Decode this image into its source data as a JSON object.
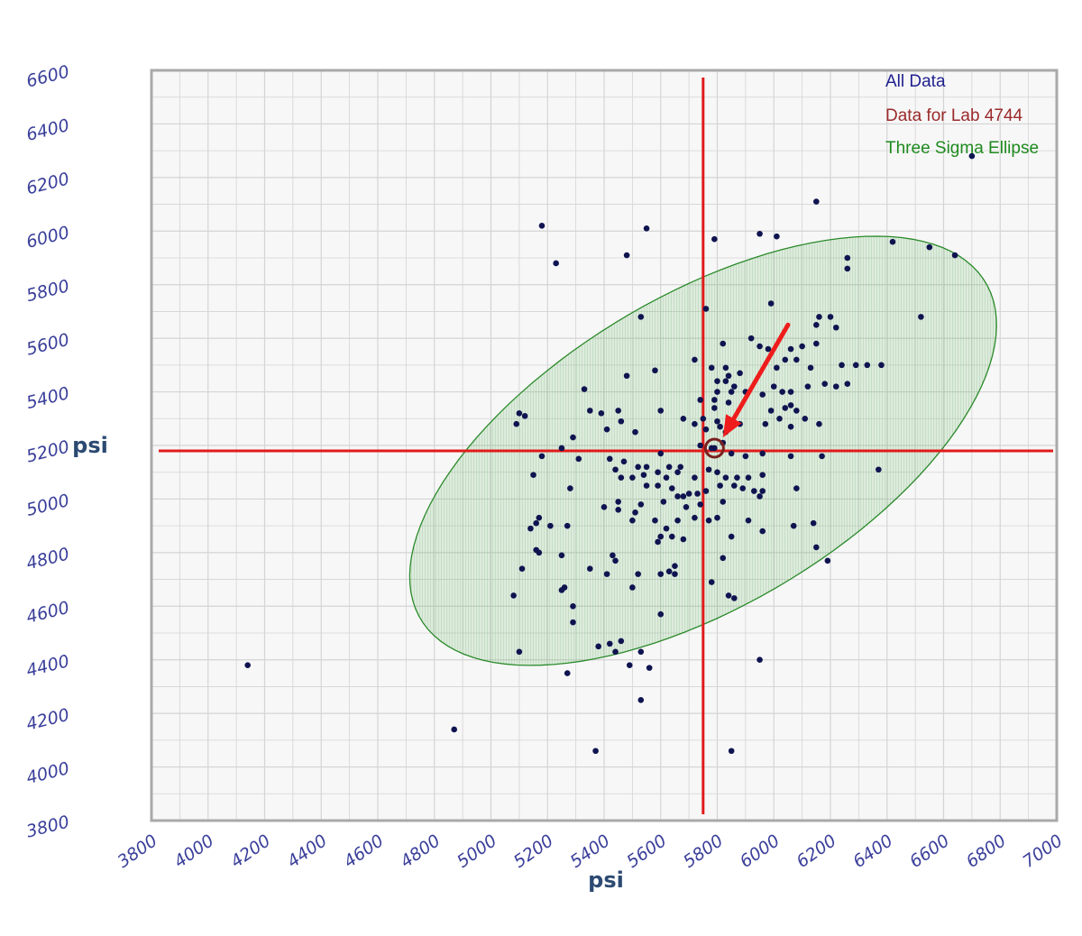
{
  "chart_data": {
    "type": "scatter",
    "title": "",
    "xlabel": "psi",
    "ylabel": "psi",
    "xlim": [
      3800,
      7000
    ],
    "ylim": [
      3800,
      6600
    ],
    "x_ticks": [
      3800,
      4000,
      4200,
      4400,
      4600,
      4800,
      5000,
      5200,
      5400,
      5600,
      5800,
      6000,
      6200,
      6400,
      6600,
      6800,
      7000
    ],
    "y_ticks": [
      3800,
      4000,
      4200,
      4400,
      4600,
      4800,
      5000,
      5200,
      5400,
      5600,
      5800,
      6000,
      6200,
      6400,
      6600
    ],
    "grid": true,
    "legend": {
      "placement": "top-right",
      "entries": [
        {
          "label": "All Data",
          "color": "#1f1f8f"
        },
        {
          "label": "Data for Lab 4744",
          "color": "#9b2a2a"
        },
        {
          "label": "Three Sigma Ellipse",
          "color": "#1e8a1e"
        }
      ]
    },
    "colors": {
      "points": "#0f1450",
      "crosshair": "#e01b1b",
      "ellipse_fill": "#2d8f2d",
      "ellipse_stroke": "#2a8a2a",
      "lab_marker": "#7a1f1f",
      "arrow": "#ef1c1c",
      "grid": "#d4d4d4",
      "plot_bg": "#f7f7f7"
    },
    "series": [
      {
        "name": "All Data",
        "points": [
          [
            4140,
            4380
          ],
          [
            4870,
            4140
          ],
          [
            5180,
            6020
          ],
          [
            5230,
            5880
          ],
          [
            5550,
            6010
          ],
          [
            5790,
            5970
          ],
          [
            5950,
            5990
          ],
          [
            6010,
            5980
          ],
          [
            6150,
            6110
          ],
          [
            6700,
            6280
          ],
          [
            6420,
            5960
          ],
          [
            6550,
            5940
          ],
          [
            6640,
            5910
          ],
          [
            6260,
            5900
          ],
          [
            6260,
            5860
          ],
          [
            5480,
            5910
          ],
          [
            5530,
            5680
          ],
          [
            5760,
            5710
          ],
          [
            5990,
            5730
          ],
          [
            6150,
            5650
          ],
          [
            6160,
            5680
          ],
          [
            6200,
            5680
          ],
          [
            6220,
            5640
          ],
          [
            6520,
            5680
          ],
          [
            5820,
            5580
          ],
          [
            5920,
            5600
          ],
          [
            5950,
            5570
          ],
          [
            5980,
            5560
          ],
          [
            6060,
            5560
          ],
          [
            6100,
            5570
          ],
          [
            6150,
            5580
          ],
          [
            6240,
            5500
          ],
          [
            6290,
            5500
          ],
          [
            6330,
            5500
          ],
          [
            6380,
            5500
          ],
          [
            6040,
            5520
          ],
          [
            6080,
            5520
          ],
          [
            6010,
            5490
          ],
          [
            6130,
            5490
          ],
          [
            5720,
            5520
          ],
          [
            5580,
            5480
          ],
          [
            5480,
            5460
          ],
          [
            5780,
            5490
          ],
          [
            5830,
            5490
          ],
          [
            5840,
            5460
          ],
          [
            5880,
            5470
          ],
          [
            5800,
            5440
          ],
          [
            5830,
            5440
          ],
          [
            5860,
            5420
          ],
          [
            5800,
            5400
          ],
          [
            5850,
            5400
          ],
          [
            5900,
            5400
          ],
          [
            5960,
            5390
          ],
          [
            6000,
            5420
          ],
          [
            6030,
            5400
          ],
          [
            6060,
            5400
          ],
          [
            6120,
            5420
          ],
          [
            6180,
            5430
          ],
          [
            6220,
            5420
          ],
          [
            6260,
            5430
          ],
          [
            5330,
            5410
          ],
          [
            5790,
            5370
          ],
          [
            5790,
            5340
          ],
          [
            5840,
            5360
          ],
          [
            5740,
            5370
          ],
          [
            5680,
            5300
          ],
          [
            5750,
            5300
          ],
          [
            5600,
            5330
          ],
          [
            5450,
            5330
          ],
          [
            5460,
            5290
          ],
          [
            5350,
            5330
          ],
          [
            5390,
            5320
          ],
          [
            5100,
            5320
          ],
          [
            5120,
            5310
          ],
          [
            5090,
            5280
          ],
          [
            5800,
            5290
          ],
          [
            5840,
            5280
          ],
          [
            5880,
            5280
          ],
          [
            5970,
            5280
          ],
          [
            5990,
            5330
          ],
          [
            6040,
            5340
          ],
          [
            6060,
            5350
          ],
          [
            6080,
            5330
          ],
          [
            6110,
            5300
          ],
          [
            6160,
            5280
          ],
          [
            6060,
            5270
          ],
          [
            6020,
            5300
          ],
          [
            5720,
            5280
          ],
          [
            5760,
            5260
          ],
          [
            5810,
            5270
          ],
          [
            5830,
            5250
          ],
          [
            5410,
            5260
          ],
          [
            5510,
            5250
          ],
          [
            5290,
            5230
          ],
          [
            5250,
            5190
          ],
          [
            5180,
            5160
          ],
          [
            5310,
            5150
          ],
          [
            5420,
            5150
          ],
          [
            5470,
            5140
          ],
          [
            5520,
            5120
          ],
          [
            5550,
            5120
          ],
          [
            5600,
            5170
          ],
          [
            5630,
            5120
          ],
          [
            5670,
            5120
          ],
          [
            5740,
            5200
          ],
          [
            5780,
            5190
          ],
          [
            5820,
            5210
          ],
          [
            5850,
            5170
          ],
          [
            5900,
            5160
          ],
          [
            5960,
            5170
          ],
          [
            6060,
            5160
          ],
          [
            6170,
            5160
          ],
          [
            6370,
            5110
          ],
          [
            5440,
            5110
          ],
          [
            5460,
            5080
          ],
          [
            5500,
            5080
          ],
          [
            5540,
            5090
          ],
          [
            5590,
            5100
          ],
          [
            5620,
            5080
          ],
          [
            5660,
            5100
          ],
          [
            5720,
            5080
          ],
          [
            5770,
            5110
          ],
          [
            5800,
            5100
          ],
          [
            5830,
            5080
          ],
          [
            5870,
            5080
          ],
          [
            5910,
            5080
          ],
          [
            5960,
            5090
          ],
          [
            5150,
            5090
          ],
          [
            5280,
            5040
          ],
          [
            5550,
            5050
          ],
          [
            5590,
            5050
          ],
          [
            5640,
            5040
          ],
          [
            5660,
            5010
          ],
          [
            5680,
            5010
          ],
          [
            5700,
            5020
          ],
          [
            5730,
            5020
          ],
          [
            5760,
            5030
          ],
          [
            5810,
            5050
          ],
          [
            5860,
            5050
          ],
          [
            5890,
            5040
          ],
          [
            5930,
            5030
          ],
          [
            5960,
            5030
          ],
          [
            5950,
            5010
          ],
          [
            6080,
            5040
          ],
          [
            5450,
            4990
          ],
          [
            5530,
            4980
          ],
          [
            5610,
            4990
          ],
          [
            5690,
            4970
          ],
          [
            5740,
            4980
          ],
          [
            5820,
            4990
          ],
          [
            5400,
            4970
          ],
          [
            5450,
            4960
          ],
          [
            5510,
            4950
          ],
          [
            5170,
            4930
          ],
          [
            5160,
            4910
          ],
          [
            5140,
            4890
          ],
          [
            5210,
            4900
          ],
          [
            5270,
            4900
          ],
          [
            5500,
            4920
          ],
          [
            5580,
            4920
          ],
          [
            5620,
            4890
          ],
          [
            5660,
            4920
          ],
          [
            5720,
            4930
          ],
          [
            5770,
            4920
          ],
          [
            5800,
            4930
          ],
          [
            5910,
            4920
          ],
          [
            6070,
            4900
          ],
          [
            6140,
            4910
          ],
          [
            5600,
            4860
          ],
          [
            5640,
            4860
          ],
          [
            5590,
            4840
          ],
          [
            5680,
            4850
          ],
          [
            5850,
            4860
          ],
          [
            5960,
            4880
          ],
          [
            6150,
            4820
          ],
          [
            6190,
            4770
          ],
          [
            5170,
            4800
          ],
          [
            5160,
            4810
          ],
          [
            5250,
            4790
          ],
          [
            5430,
            4790
          ],
          [
            5440,
            4770
          ],
          [
            5650,
            4750
          ],
          [
            5820,
            4780
          ],
          [
            5650,
            4720
          ],
          [
            5600,
            4720
          ],
          [
            5110,
            4740
          ],
          [
            5350,
            4740
          ],
          [
            5410,
            4720
          ],
          [
            5520,
            4720
          ],
          [
            5630,
            4730
          ],
          [
            5780,
            4690
          ],
          [
            5260,
            4670
          ],
          [
            5250,
            4660
          ],
          [
            5500,
            4670
          ],
          [
            5080,
            4640
          ],
          [
            5840,
            4640
          ],
          [
            5860,
            4630
          ],
          [
            5290,
            4600
          ],
          [
            5290,
            4540
          ],
          [
            5600,
            4570
          ],
          [
            5380,
            4450
          ],
          [
            5420,
            4460
          ],
          [
            5440,
            4430
          ],
          [
            5460,
            4470
          ],
          [
            5100,
            4430
          ],
          [
            5530,
            4430
          ],
          [
            5490,
            4380
          ],
          [
            5270,
            4350
          ],
          [
            5560,
            4370
          ],
          [
            5950,
            4400
          ],
          [
            5530,
            4250
          ],
          [
            5370,
            4060
          ],
          [
            5850,
            4060
          ]
        ]
      },
      {
        "name": "Data for Lab 4744",
        "points": [
          [
            5790,
            5190
          ]
        ]
      }
    ],
    "ellipse": {
      "name": "Three Sigma Ellipse",
      "center": [
        5750,
        5180
      ],
      "semi_major": 1180,
      "semi_minor": 570,
      "angle_deg": 33
    },
    "crosshair": {
      "x": 5750,
      "y": 5180
    },
    "arrow": {
      "from": [
        6050,
        5650
      ],
      "to": [
        5820,
        5230
      ]
    }
  }
}
